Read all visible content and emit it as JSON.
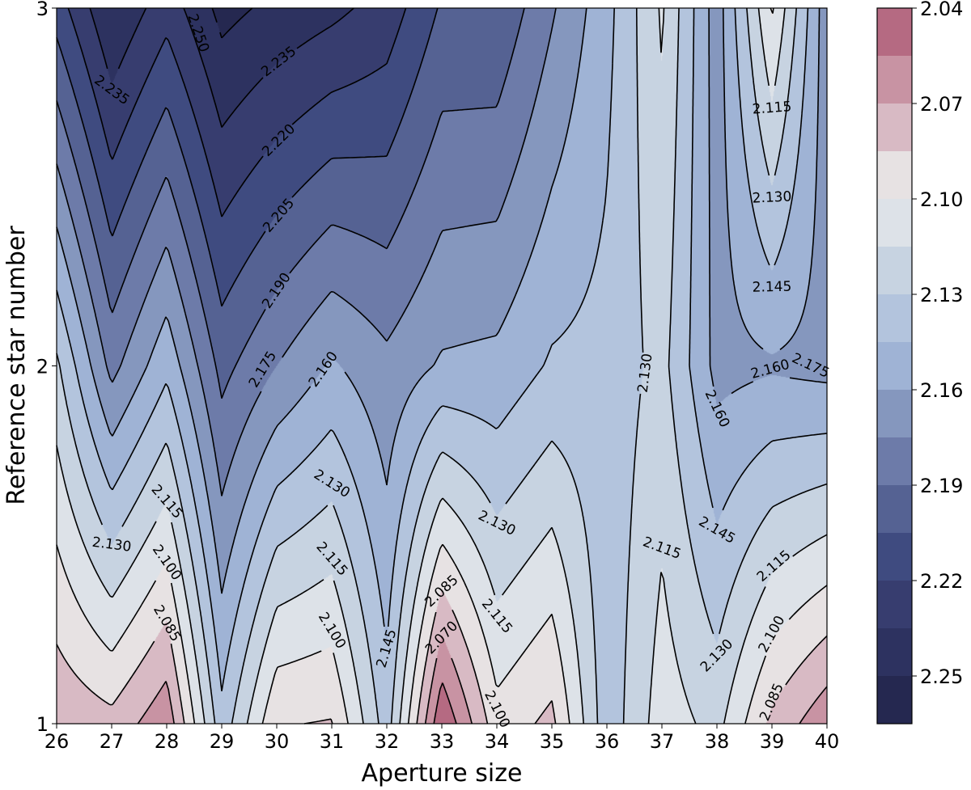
{
  "chart_data": {
    "type": "contour",
    "xlabel": "Aperture size",
    "ylabel": "Reference star number",
    "x": [
      26,
      27,
      28,
      29,
      30,
      31,
      32,
      33,
      34,
      35,
      36,
      37,
      38,
      39,
      40
    ],
    "y": [
      1,
      2,
      3
    ],
    "z": [
      [
        2.073,
        2.08,
        2.059,
        2.14,
        2.086,
        2.084,
        2.138,
        2.041,
        2.094,
        2.081,
        2.14,
        2.107,
        2.12,
        2.081,
        2.059
      ],
      [
        2.127,
        2.18,
        2.149,
        2.195,
        2.175,
        2.158,
        2.171,
        2.158,
        2.156,
        2.143,
        2.14,
        2.125,
        2.165,
        2.162,
        2.165
      ],
      [
        2.212,
        2.25,
        2.226,
        2.255,
        2.246,
        2.239,
        2.229,
        2.203,
        2.203,
        2.177,
        2.15,
        2.113,
        2.168,
        2.098,
        2.17
      ]
    ],
    "xlim": [
      26,
      40
    ],
    "ylim": [
      1,
      3
    ],
    "x_ticks": [
      "26",
      "27",
      "28",
      "29",
      "30",
      "31",
      "32",
      "33",
      "34",
      "35",
      "36",
      "37",
      "38",
      "39",
      "40"
    ],
    "y_ticks": [
      "1",
      "2",
      "3"
    ],
    "fill_levels": [
      2.04,
      2.055,
      2.07,
      2.085,
      2.1,
      2.115,
      2.13,
      2.145,
      2.16,
      2.175,
      2.19,
      2.205,
      2.22,
      2.235,
      2.25,
      2.265
    ],
    "line_levels": [
      2.055,
      2.07,
      2.085,
      2.1,
      2.115,
      2.13,
      2.145,
      2.16,
      2.175,
      2.19,
      2.205,
      2.22,
      2.235,
      2.25
    ],
    "band_colors": [
      "#b56a82",
      "#c893a3",
      "#d8bac4",
      "#e7e2e3",
      "#dde2e8",
      "#c7d3e1",
      "#b3c4dd",
      "#9fb3d5",
      "#8597be",
      "#6d7ba9",
      "#556293",
      "#3f4b80",
      "#373d6f",
      "#2d3260",
      "#252850"
    ],
    "line_color": "#000000",
    "colorbar": {
      "orientation": "vertical",
      "inverted": true,
      "range": [
        2.04,
        2.265
      ],
      "ticks": [
        "2.04",
        "2.07",
        "2.10",
        "2.13",
        "2.16",
        "2.19",
        "2.22",
        "2.25"
      ]
    },
    "contour_labels": [
      {
        "text": "2.250",
        "x": 28.57,
        "y": 2.93
      },
      {
        "text": "2.235",
        "x": 27.0,
        "y": 2.77
      },
      {
        "text": "2.235",
        "x": 30.04,
        "y": 2.85
      },
      {
        "text": "2.220",
        "x": 30.04,
        "y": 2.63
      },
      {
        "text": "2.205",
        "x": 30.04,
        "y": 2.42
      },
      {
        "text": "2.190",
        "x": 30.0,
        "y": 2.21
      },
      {
        "text": "2.175",
        "x": 29.75,
        "y": 1.99
      },
      {
        "text": "2.160",
        "x": 30.85,
        "y": 1.99
      },
      {
        "text": "2.115",
        "x": 28.0,
        "y": 1.62
      },
      {
        "text": "2.130",
        "x": 27.0,
        "y": 1.5
      },
      {
        "text": "2.100",
        "x": 28.0,
        "y": 1.45
      },
      {
        "text": "2.085",
        "x": 28.0,
        "y": 1.28
      },
      {
        "text": "2.130",
        "x": 31.0,
        "y": 1.67
      },
      {
        "text": "2.115",
        "x": 31.0,
        "y": 1.46
      },
      {
        "text": "2.100",
        "x": 31.0,
        "y": 1.26
      },
      {
        "text": "2.145",
        "x": 32.0,
        "y": 1.21
      },
      {
        "text": "2.085",
        "x": 33.0,
        "y": 1.37
      },
      {
        "text": "2.070",
        "x": 33.0,
        "y": 1.24
      },
      {
        "text": "2.130",
        "x": 34.0,
        "y": 1.56
      },
      {
        "text": "2.115",
        "x": 34.0,
        "y": 1.3
      },
      {
        "text": "2.100",
        "x": 34.0,
        "y": 1.04
      },
      {
        "text": "2.130",
        "x": 36.7,
        "y": 1.98
      },
      {
        "text": "2.115",
        "x": 37.0,
        "y": 1.49
      },
      {
        "text": "2.115",
        "x": 39.0,
        "y": 2.72
      },
      {
        "text": "2.130",
        "x": 39.0,
        "y": 2.47
      },
      {
        "text": "2.145",
        "x": 39.0,
        "y": 2.22
      },
      {
        "text": "2.160",
        "x": 38.97,
        "y": 1.99
      },
      {
        "text": "2.175",
        "x": 39.7,
        "y": 2.0
      },
      {
        "text": "2.160",
        "x": 38.0,
        "y": 1.88
      },
      {
        "text": "2.145",
        "x": 38.0,
        "y": 1.54
      },
      {
        "text": "2.130",
        "x": 38.0,
        "y": 1.19
      },
      {
        "text": "2.115",
        "x": 39.04,
        "y": 1.44
      },
      {
        "text": "2.100",
        "x": 39.0,
        "y": 1.25
      },
      {
        "text": "2.085",
        "x": 39.0,
        "y": 1.06
      }
    ]
  }
}
